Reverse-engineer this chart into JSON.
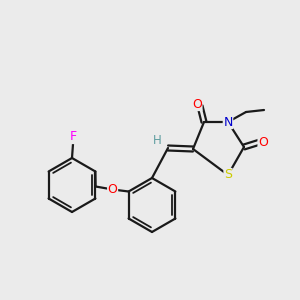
{
  "background_color": "#ebebeb",
  "bond_color": "#1a1a1a",
  "atom_colors": {
    "O": "#ff0000",
    "N": "#0000cc",
    "S": "#cccc00",
    "F": "#ff00ff",
    "H": "#5f9ea0",
    "C": "#1a1a1a"
  },
  "figsize": [
    3.0,
    3.0
  ],
  "dpi": 100
}
